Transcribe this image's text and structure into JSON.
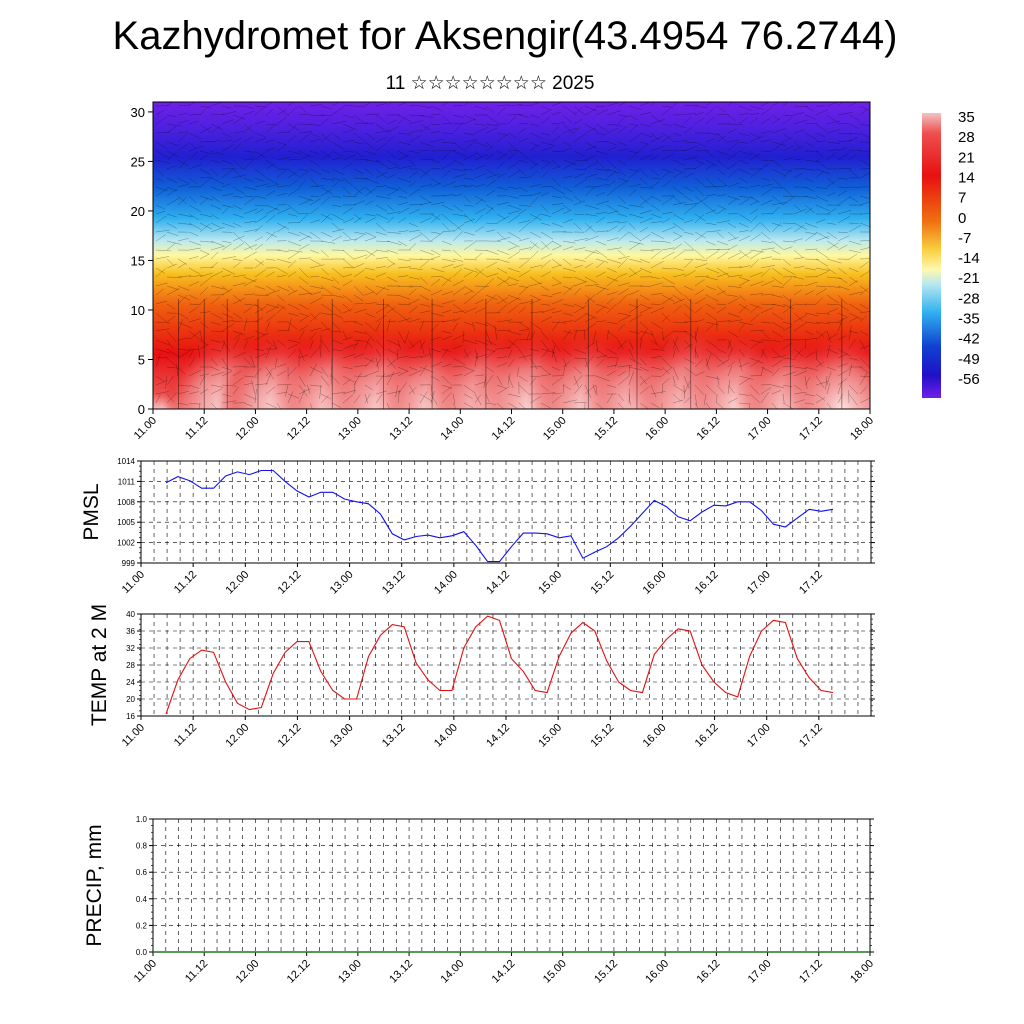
{
  "title": "Kazhydromet for Aksengir(43.4954 76.2744)",
  "subtitle": "11 ☆☆☆☆☆☆☆☆ 2025",
  "colors": {
    "pmsl_line": "#1010ee",
    "temp_line": "#e01010",
    "precip_line": "#1a7a1a"
  },
  "chart_data": [
    {
      "type": "heatmap",
      "name": "vertical-cross-section",
      "x_ticks": [
        "11.00",
        "11.12",
        "12.00",
        "12.12",
        "13.00",
        "13.12",
        "14.00",
        "14.12",
        "15.00",
        "15.12",
        "16.00",
        "16.12",
        "17.00",
        "17.12",
        "18.00"
      ],
      "y_ticks": [
        0,
        5,
        10,
        15,
        20,
        25,
        30
      ],
      "ylim": [
        0,
        31
      ],
      "colorbar_labels": [
        "35",
        "28",
        "21",
        "14",
        "7",
        "0",
        "-7",
        "-14",
        "-21",
        "-28",
        "-35",
        "-42",
        "-49",
        "-56"
      ],
      "colorbar_range": [
        -60,
        38
      ]
    },
    {
      "type": "line",
      "ylabel": "PMSL",
      "x_ticks": [
        "11.00",
        "11.12",
        "12.00",
        "12.12",
        "13.00",
        "13.12",
        "14.00",
        "14.12",
        "15.00",
        "15.12",
        "16.00",
        "16.12",
        "17.00",
        "17.12",
        "18.00"
      ],
      "y_ticks": [
        999,
        1002,
        1005,
        1008,
        1011,
        1014
      ],
      "ylim": [
        999,
        1014
      ],
      "grid": true,
      "values": [
        1010.8,
        1011.7,
        1011.1,
        1010.0,
        1010.0,
        1011.8,
        1012.4,
        1012.0,
        1012.6,
        1012.6,
        1011.0,
        1009.6,
        1008.7,
        1009.4,
        1009.4,
        1008.4,
        1008.0,
        1007.7,
        1006.2,
        1003.3,
        1002.4,
        1002.9,
        1003.1,
        1002.7,
        1003.0,
        1003.6,
        1001.6,
        999.2,
        999.2,
        1001.4,
        1003.4,
        1003.4,
        1003.3,
        1002.7,
        1003.0,
        999.7,
        1000.6,
        1001.4,
        1002.7,
        1004.4,
        1006.3,
        1008.2,
        1007.3,
        1005.8,
        1005.2,
        1006.5,
        1007.5,
        1007.4,
        1008.0,
        1008.0,
        1006.7,
        1004.7,
        1004.3,
        1005.6,
        1006.9,
        1006.6,
        1006.9
      ]
    },
    {
      "type": "line",
      "ylabel": "TEMP at 2 M",
      "x_ticks": [
        "11.00",
        "11.12",
        "12.00",
        "12.12",
        "13.00",
        "13.12",
        "14.00",
        "14.12",
        "15.00",
        "15.12",
        "16.00",
        "16.12",
        "17.00",
        "17.12",
        "18.00"
      ],
      "y_ticks": [
        16,
        20,
        24,
        28,
        32,
        36,
        40
      ],
      "ylim": [
        16,
        40
      ],
      "grid": true,
      "values": [
        16.5,
        24.5,
        29.5,
        31.5,
        31.0,
        24.0,
        19.0,
        17.5,
        18.0,
        26.0,
        31.0,
        33.5,
        33.5,
        26.5,
        22.0,
        20.0,
        20.0,
        30.0,
        35.0,
        37.5,
        37.0,
        28.5,
        24.5,
        22.0,
        22.0,
        32.0,
        37.0,
        39.5,
        38.5,
        29.5,
        26.5,
        22.0,
        21.5,
        30.0,
        35.5,
        38.0,
        36.0,
        29.0,
        24.0,
        22.0,
        21.5,
        30.5,
        34.0,
        36.5,
        36.0,
        28.0,
        24.0,
        21.5,
        20.5,
        30.0,
        36.0,
        38.5,
        38.0,
        29.5,
        25.0,
        22.0,
        21.5
      ]
    },
    {
      "type": "line",
      "ylabel": "PRECIP, mm",
      "x_ticks": [
        "11.00",
        "11.12",
        "12.00",
        "12.12",
        "13.00",
        "13.12",
        "14.00",
        "14.12",
        "15.00",
        "15.12",
        "16.00",
        "16.12",
        "17.00",
        "17.12",
        "18.00"
      ],
      "y_ticks": [
        "0.0",
        "0.2",
        "0.4",
        "0.6",
        "0.8",
        "1.0"
      ],
      "ylim": [
        0,
        1
      ],
      "grid": true,
      "values": [
        0,
        0,
        0,
        0,
        0,
        0,
        0,
        0,
        0,
        0,
        0,
        0,
        0,
        0,
        0,
        0,
        0,
        0,
        0,
        0,
        0,
        0,
        0,
        0,
        0,
        0,
        0,
        0,
        0,
        0,
        0,
        0,
        0,
        0,
        0,
        0,
        0,
        0,
        0,
        0,
        0,
        0,
        0,
        0,
        0,
        0,
        0,
        0,
        0,
        0,
        0,
        0,
        0,
        0,
        0,
        0,
        0
      ]
    }
  ]
}
